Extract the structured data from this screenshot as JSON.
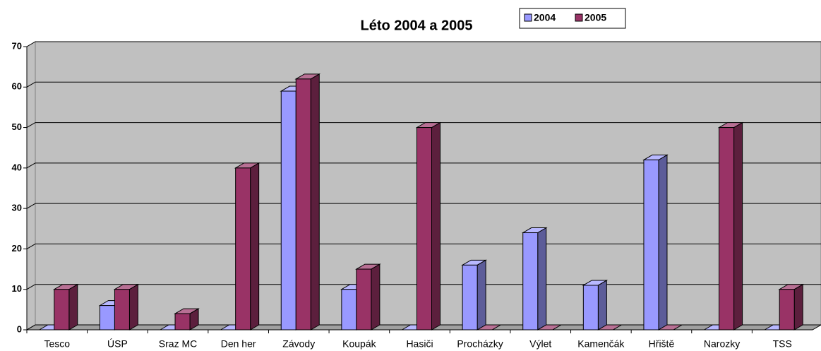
{
  "chart_data": {
    "type": "bar3d",
    "title": "Léto 2004 a 2005",
    "categories": [
      "Tesco",
      "ÚSP",
      "Sraz MC",
      "Den her",
      "Závody",
      "Koupák",
      "Hasiči",
      "Procházky",
      "Výlet",
      "Kamenčák",
      "Hřiště",
      "Narozky",
      "TSS"
    ],
    "series": [
      {
        "name": "2004",
        "color": "#9999ff",
        "values": [
          0,
          6,
          0,
          0,
          59,
          10,
          0,
          16,
          24,
          11,
          42,
          0,
          0
        ]
      },
      {
        "name": "2005",
        "color": "#993366",
        "values": [
          10,
          10,
          4,
          40,
          62,
          15,
          50,
          0,
          0,
          0,
          0,
          50,
          10
        ]
      }
    ],
    "ylim": [
      0,
      70
    ],
    "yticks": [
      0,
      10,
      20,
      30,
      40,
      50,
      60,
      70
    ],
    "grid": true,
    "legend": "top"
  }
}
